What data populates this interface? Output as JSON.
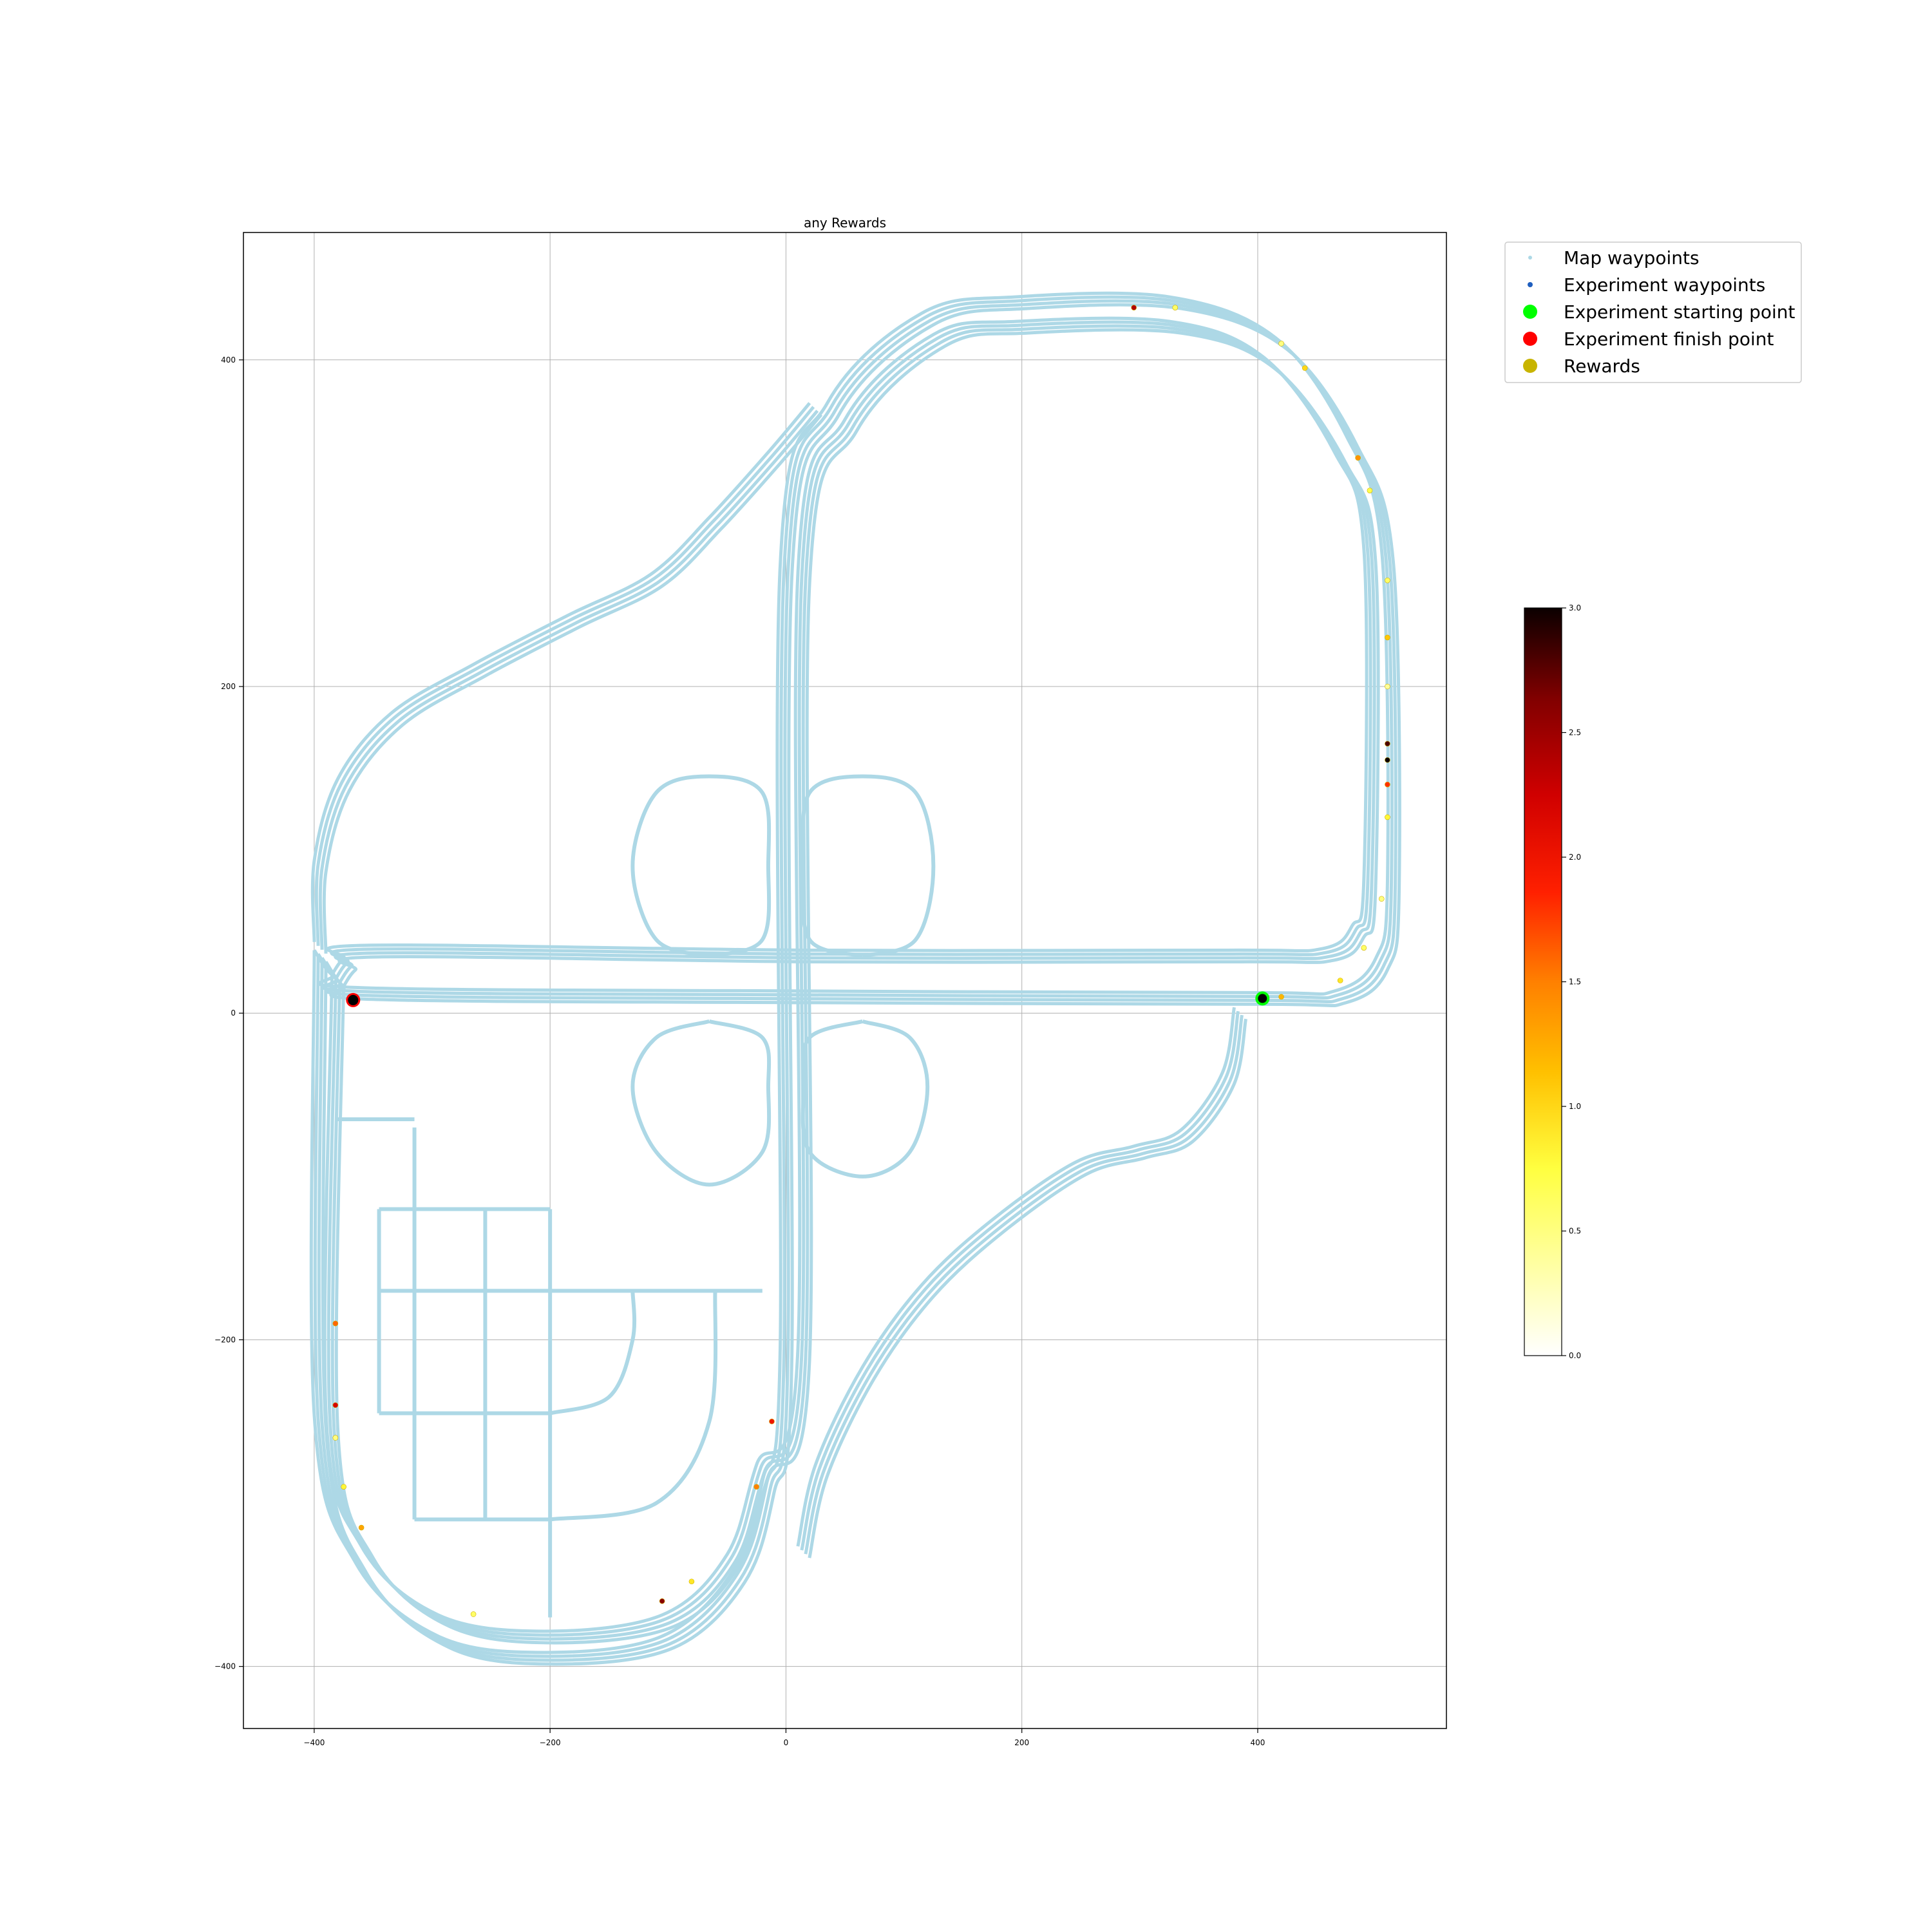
{
  "chart_data": {
    "type": "scatter",
    "title": "any Rewards",
    "xlabel": "",
    "ylabel": "",
    "xlim": [
      -460,
      560
    ],
    "ylim": [
      -438,
      478
    ],
    "xticks": [
      -400,
      -200,
      0,
      200,
      400
    ],
    "yticks": [
      -400,
      -200,
      0,
      200,
      400
    ],
    "xtick_labels": [
      "−400",
      "−200",
      "0",
      "200",
      "400"
    ],
    "ytick_labels": [
      "−400",
      "−200",
      "0",
      "200",
      "400"
    ],
    "grid": true,
    "legend_position": "upper-right-outside",
    "legend": [
      {
        "label": "Map waypoints",
        "color": "#add8e6",
        "marker": "small-dot"
      },
      {
        "label": "Experiment waypoints",
        "color": "#1f5fbf",
        "marker": "dot"
      },
      {
        "label": "Experiment starting point",
        "color": "#00ff00",
        "marker": "large-dot"
      },
      {
        "label": "Experiment finish point",
        "color": "#ff0000",
        "marker": "large-dot"
      },
      {
        "label": "Rewards",
        "color": "#c8b400",
        "marker": "large-dot"
      }
    ],
    "colorbar": {
      "colormap": "hot_r",
      "range": [
        0.0,
        3.0
      ],
      "ticks": [
        0.0,
        0.5,
        1.0,
        1.5,
        2.0,
        2.5,
        3.0
      ],
      "tick_labels": [
        "0.0",
        "0.5",
        "1.0",
        "1.5",
        "2.0",
        "2.5",
        "3.0"
      ]
    },
    "start_point": {
      "x": 404,
      "y": 9
    },
    "finish_point": {
      "x": -367,
      "y": 8
    },
    "map_paths": [
      {
        "name": "outer-ring",
        "points": [
          [
            -395,
            35
          ],
          [
            -395,
            -250
          ],
          [
            -360,
            -340
          ],
          [
            -290,
            -385
          ],
          [
            -200,
            -395
          ],
          [
            -100,
            -385
          ],
          [
            -40,
            -345
          ],
          [
            -15,
            -290
          ],
          [
            0,
            -210
          ],
          [
            0,
            270
          ],
          [
            40,
            370
          ],
          [
            120,
            425
          ],
          [
            200,
            435
          ],
          [
            330,
            435
          ],
          [
            420,
            410
          ],
          [
            480,
            350
          ],
          [
            510,
            280
          ],
          [
            515,
            80
          ],
          [
            505,
            30
          ],
          [
            470,
            10
          ],
          [
            400,
            9
          ],
          [
            20,
            10
          ],
          [
            -355,
            12
          ],
          [
            -380,
            20
          ],
          [
            -395,
            35
          ]
        ]
      },
      {
        "name": "inner-ring",
        "points": [
          [
            -380,
            20
          ],
          [
            -385,
            -250
          ],
          [
            -355,
            -330
          ],
          [
            -290,
            -372
          ],
          [
            -200,
            -382
          ],
          [
            -100,
            -372
          ],
          [
            -45,
            -335
          ],
          [
            -20,
            -280
          ],
          [
            15,
            -210
          ],
          [
            15,
            265
          ],
          [
            55,
            360
          ],
          [
            130,
            412
          ],
          [
            200,
            420
          ],
          [
            330,
            420
          ],
          [
            410,
            398
          ],
          [
            470,
            340
          ],
          [
            495,
            280
          ],
          [
            495,
            80
          ],
          [
            485,
            50
          ],
          [
            460,
            36
          ],
          [
            380,
            35
          ],
          [
            20,
            35
          ],
          [
            -350,
            38
          ],
          [
            -370,
            30
          ],
          [
            -380,
            20
          ]
        ]
      },
      {
        "name": "northwest-connector",
        "points": [
          [
            -395,
            40
          ],
          [
            -395,
            90
          ],
          [
            -375,
            140
          ],
          [
            -330,
            180
          ],
          [
            -260,
            210
          ],
          [
            -180,
            240
          ],
          [
            -110,
            265
          ],
          [
            -60,
            300
          ],
          [
            -10,
            340
          ],
          [
            25,
            370
          ]
        ]
      },
      {
        "name": "southeast-connector",
        "points": [
          [
            15,
            -330
          ],
          [
            30,
            -280
          ],
          [
            70,
            -220
          ],
          [
            120,
            -170
          ],
          [
            180,
            -130
          ],
          [
            250,
            -95
          ],
          [
            300,
            -85
          ],
          [
            340,
            -75
          ],
          [
            375,
            -40
          ],
          [
            385,
            0
          ]
        ]
      },
      {
        "name": "loop-nw",
        "points": [
          [
            -65,
            35
          ],
          [
            -110,
            45
          ],
          [
            -130,
            90
          ],
          [
            -110,
            135
          ],
          [
            -65,
            145
          ],
          [
            -20,
            135
          ],
          [
            -15,
            90
          ],
          [
            -20,
            45
          ],
          [
            -65,
            35
          ]
        ]
      },
      {
        "name": "loop-ne",
        "points": [
          [
            65,
            35
          ],
          [
            20,
            45
          ],
          [
            15,
            90
          ],
          [
            20,
            135
          ],
          [
            65,
            145
          ],
          [
            110,
            135
          ],
          [
            125,
            90
          ],
          [
            110,
            45
          ],
          [
            65,
            35
          ]
        ]
      },
      {
        "name": "loop-sw",
        "points": [
          [
            -65,
            -5
          ],
          [
            -110,
            -15
          ],
          [
            -130,
            -45
          ],
          [
            -110,
            -85
          ],
          [
            -65,
            -105
          ],
          [
            -20,
            -85
          ],
          [
            -15,
            -45
          ],
          [
            -20,
            -15
          ],
          [
            -65,
            -5
          ]
        ]
      },
      {
        "name": "loop-se",
        "points": [
          [
            65,
            -5
          ],
          [
            20,
            -15
          ],
          [
            15,
            -45
          ],
          [
            20,
            -85
          ],
          [
            65,
            -100
          ],
          [
            105,
            -85
          ],
          [
            120,
            -45
          ],
          [
            105,
            -15
          ],
          [
            65,
            -5
          ]
        ]
      },
      {
        "name": "grid-row-1",
        "points": [
          [
            -345,
            -120
          ],
          [
            -200,
            -120
          ]
        ]
      },
      {
        "name": "grid-row-2",
        "points": [
          [
            -345,
            -170
          ],
          [
            -20,
            -170
          ]
        ]
      },
      {
        "name": "grid-row-3",
        "points": [
          [
            -345,
            -245
          ],
          [
            -200,
            -245
          ]
        ]
      },
      {
        "name": "grid-row-4",
        "points": [
          [
            -315,
            -310
          ],
          [
            -200,
            -310
          ]
        ]
      },
      {
        "name": "grid-col-1",
        "points": [
          [
            -345,
            -120
          ],
          [
            -345,
            -245
          ]
        ]
      },
      {
        "name": "grid-col-2",
        "points": [
          [
            -315,
            -70
          ],
          [
            -315,
            -310
          ]
        ]
      },
      {
        "name": "grid-col-3",
        "points": [
          [
            -255,
            -120
          ],
          [
            -255,
            -310
          ]
        ]
      },
      {
        "name": "grid-col-4",
        "points": [
          [
            -200,
            -120
          ],
          [
            -200,
            -370
          ]
        ]
      },
      {
        "name": "grid-arc",
        "points": [
          [
            -200,
            -245
          ],
          [
            -150,
            -235
          ],
          [
            -130,
            -200
          ],
          [
            -130,
            -170
          ]
        ]
      },
      {
        "name": "grid-arc-2",
        "points": [
          [
            -200,
            -310
          ],
          [
            -110,
            -300
          ],
          [
            -65,
            -250
          ],
          [
            -60,
            -170
          ]
        ]
      },
      {
        "name": "grid-top",
        "points": [
          [
            -380,
            -65
          ],
          [
            -315,
            -65
          ]
        ]
      }
    ],
    "reward_points": [
      {
        "x": 510,
        "y": 265,
        "v": 0.6
      },
      {
        "x": 510,
        "y": 230,
        "v": 1.1
      },
      {
        "x": 510,
        "y": 200,
        "v": 0.4
      },
      {
        "x": 510,
        "y": 165,
        "v": 2.8
      },
      {
        "x": 510,
        "y": 155,
        "v": 3.0
      },
      {
        "x": 510,
        "y": 140,
        "v": 1.8
      },
      {
        "x": 510,
        "y": 120,
        "v": 0.8
      },
      {
        "x": 505,
        "y": 70,
        "v": 0.5
      },
      {
        "x": 490,
        "y": 40,
        "v": 0.6
      },
      {
        "x": 470,
        "y": 20,
        "v": 0.9
      },
      {
        "x": 420,
        "y": 10,
        "v": 1.2
      },
      {
        "x": 485,
        "y": 340,
        "v": 1.4
      },
      {
        "x": 495,
        "y": 320,
        "v": 0.7
      },
      {
        "x": 420,
        "y": 410,
        "v": 0.5
      },
      {
        "x": 440,
        "y": 395,
        "v": 1.0
      },
      {
        "x": 330,
        "y": 432,
        "v": 0.6
      },
      {
        "x": 295,
        "y": 432,
        "v": 2.4
      },
      {
        "x": -382,
        "y": -190,
        "v": 1.6
      },
      {
        "x": -382,
        "y": -240,
        "v": 2.2
      },
      {
        "x": -382,
        "y": -260,
        "v": 0.5
      },
      {
        "x": -375,
        "y": -290,
        "v": 0.8
      },
      {
        "x": -360,
        "y": -315,
        "v": 1.3
      },
      {
        "x": -265,
        "y": -368,
        "v": 0.6
      },
      {
        "x": -105,
        "y": -360,
        "v": 2.6
      },
      {
        "x": -80,
        "y": -348,
        "v": 0.9
      },
      {
        "x": -25,
        "y": -290,
        "v": 1.5
      },
      {
        "x": -12,
        "y": -250,
        "v": 2.0
      }
    ]
  }
}
